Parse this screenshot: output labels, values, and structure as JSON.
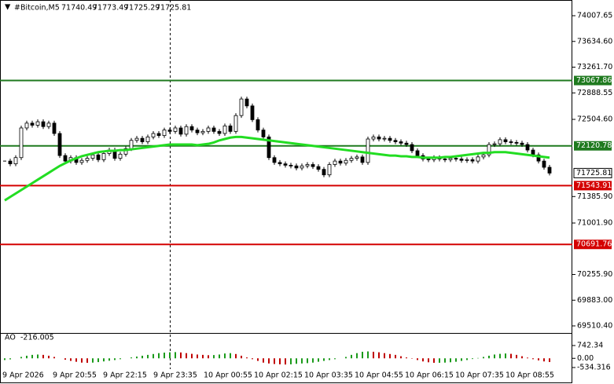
{
  "chart_data": {
    "type": "candlestick",
    "symbol": "#Bitcoin,M5",
    "ohlc": [
      71740.49,
      71773.49,
      71725.29,
      71725.81
    ],
    "ylim": [
      69510.4,
      74007.65
    ],
    "yticks": [
      74007.65,
      {
        "value": 73634.6,
        "label": "73634.60"
      },
      {
        "value": 73261.7,
        "label": "73261.70"
      },
      72888.55,
      {
        "value": 72504.6,
        "label": "72504.60"
      },
      {
        "value": 71385.9,
        "label": "71385.90"
      },
      {
        "value": 71001.9,
        "label": "71001.90"
      },
      {
        "value": 70255.9,
        "label": "70255.90"
      },
      {
        "value": 69883.0,
        "label": "69883.00"
      },
      {
        "value": 69510.4,
        "label": "69510.40"
      }
    ],
    "levels": [
      {
        "value": 73067.86,
        "color": "#1f7a1f"
      },
      {
        "value": 72120.78,
        "color": "#1f7a1f"
      },
      {
        "value": 71543.91,
        "color": "#d40000"
      },
      {
        "value": 70691.76,
        "color": "#d40000"
      }
    ],
    "close": [
      71900,
      71860,
      71950,
      72380,
      72450,
      72420,
      72470,
      72400,
      72450,
      72300,
      71980,
      71900,
      71950,
      71880,
      71910,
      71940,
      71990,
      71920,
      72010,
      72060,
      71940,
      72000,
      72080,
      72200,
      72230,
      72180,
      72250,
      72300,
      72270,
      72350,
      72330,
      72380,
      72290,
      72400,
      72350,
      72310,
      72330,
      72380,
      72330,
      72300,
      72410,
      72330,
      72560,
      72800,
      72700,
      72500,
      72350,
      72250,
      71950,
      71880,
      71860,
      71840,
      71830,
      71800,
      71830,
      71850,
      71820,
      71780,
      71700,
      71850,
      71900,
      71870,
      71910,
      71940,
      71960,
      71880,
      72220,
      72250,
      72220,
      72230,
      72200,
      72180,
      72160,
      72140,
      72050,
      71980,
      71930,
      71920,
      71950,
      71930,
      71920,
      71940,
      71930,
      71910,
      71920,
      71900,
      71960,
      71990,
      72140,
      72150,
      72210,
      72180,
      72170,
      72160,
      72140,
      72060,
      71990,
      71900,
      71810,
      71725.81
    ],
    "ma": {
      "color": "#22dd22",
      "values": [
        71330,
        71380,
        71430,
        71480,
        71530,
        71580,
        71630,
        71680,
        71730,
        71780,
        71830,
        71870,
        71910,
        71940,
        71970,
        71990,
        72010,
        72030,
        72040,
        72050,
        72050,
        72060,
        72060,
        72070,
        72080,
        72090,
        72100,
        72110,
        72120,
        72130,
        72140,
        72140,
        72140,
        72140,
        72140,
        72130,
        72140,
        72150,
        72170,
        72200,
        72220,
        72240,
        72250,
        72250,
        72240,
        72230,
        72220,
        72210,
        72200,
        72190,
        72180,
        72170,
        72160,
        72150,
        72140,
        72130,
        72120,
        72110,
        72100,
        72090,
        72080,
        72070,
        72060,
        72050,
        72040,
        72030,
        72020,
        72010,
        72000,
        71990,
        71980,
        71980,
        71970,
        71970,
        71960,
        71960,
        71950,
        71950,
        71950,
        71950,
        71960,
        71960,
        71970,
        71980,
        71990,
        72000,
        72010,
        72020,
        72020,
        72030,
        72030,
        72030,
        72020,
        72010,
        72000,
        71990,
        71980,
        71970,
        71960,
        71950
      ]
    },
    "ao": {
      "name": "AO",
      "ylim": [
        -534.316,
        742.34
      ],
      "yticks": [
        742.34,
        {
          "value": 0,
          "label": "0.00"
        },
        -534.316
      ],
      "values": [
        -100,
        -60,
        0,
        80,
        150,
        200,
        220,
        200,
        150,
        80,
        0,
        -80,
        -150,
        -200,
        -250,
        -260,
        -250,
        -220,
        -180,
        -140,
        -100,
        -50,
        0,
        50,
        100,
        150,
        200,
        250,
        300,
        330,
        350,
        360,
        340,
        300,
        260,
        220,
        200,
        180,
        190,
        220,
        280,
        300,
        250,
        150,
        50,
        -50,
        -150,
        -250,
        -300,
        -330,
        -350,
        -360,
        -350,
        -320,
        -300,
        -280,
        -250,
        -200,
        -150,
        -100,
        -50,
        0,
        80,
        200,
        300,
        380,
        400,
        380,
        350,
        300,
        250,
        200,
        120,
        50,
        -20,
        -100,
        -180,
        -230,
        -260,
        -260,
        -250,
        -230,
        -200,
        -150,
        -100,
        -40,
        20,
        80,
        150,
        220,
        260,
        280,
        260,
        200,
        120,
        40,
        -50,
        -120,
        -180,
        -216.005
      ]
    },
    "x_labels": [
      "9 Apr 2026",
      "9 Apr 20:55",
      "9 Apr 22:15",
      "9 Apr 23:35",
      "10 Apr 00:55",
      "10 Apr 02:15",
      "10 Apr 03:35",
      "10 Apr 04:55",
      "10 Apr 06:15",
      "10 Apr 07:35",
      "10 Apr 08:55"
    ]
  }
}
